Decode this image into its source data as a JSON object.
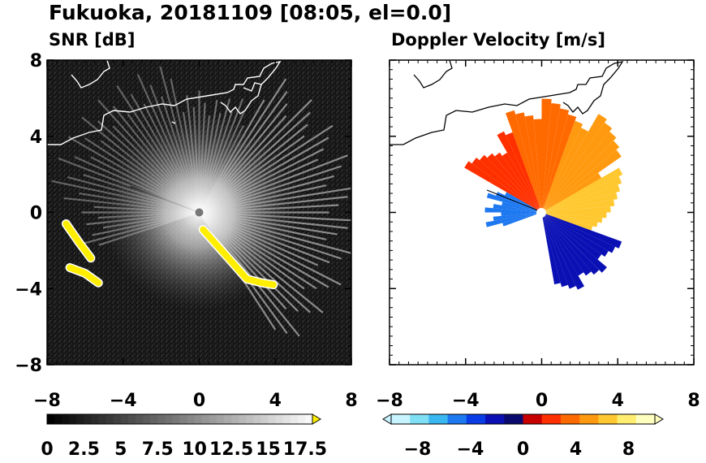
{
  "title": "Fukuoka, 20181109 [08:05, el=0.0]",
  "chart_data": [
    {
      "type": "heatmap",
      "title": "SNR [dB]",
      "xlim": [
        -8,
        8
      ],
      "ylim": [
        -8,
        8
      ],
      "x_ticks": [
        -8,
        -4,
        0,
        4,
        8
      ],
      "y_ticks": [
        8,
        4,
        0,
        -4,
        -8
      ],
      "x_tick_labels": [
        "−8",
        "−4",
        "0",
        "4",
        "8"
      ],
      "y_tick_labels": [
        "8",
        "4",
        "0",
        "−4",
        "−8"
      ],
      "background_color": "#1a1a1a",
      "highlight_color": "#ffee00",
      "colorbar": {
        "min": 0,
        "max": 18,
        "extend": "max",
        "tick_values": [
          0,
          2.5,
          5,
          7.5,
          10,
          12.5,
          15,
          17.5
        ],
        "tick_labels": [
          "0",
          "2.5",
          "5",
          "7.5",
          "10",
          "12.5",
          "15",
          "17.5"
        ],
        "low_color": "#000000",
        "high_color": "#f8f8f8",
        "extend_color": "#ffee00"
      },
      "radar_center": [
        0,
        0
      ],
      "strong_echo_areas": [
        {
          "x": [
            -7.0,
            -6.3,
            -5.7
          ],
          "y": [
            -0.6,
            -1.6,
            -2.4
          ]
        },
        {
          "x": [
            -6.8,
            -6.0,
            -5.3
          ],
          "y": [
            -2.9,
            -3.2,
            -3.7
          ]
        },
        {
          "x": [
            0.2,
            1.0,
            1.8,
            2.5,
            3.3,
            3.9
          ],
          "y": [
            -0.9,
            -1.8,
            -2.7,
            -3.5,
            -3.7,
            -3.8
          ]
        }
      ]
    },
    {
      "type": "heatmap",
      "title": "Doppler Velocity [m/s]",
      "xlim": [
        -8,
        8
      ],
      "ylim": [
        -8,
        8
      ],
      "x_ticks": [
        -8,
        -4,
        0,
        4,
        8
      ],
      "y_ticks": [
        8,
        4,
        0,
        -4,
        -8
      ],
      "x_tick_labels": [
        "−8",
        "−4",
        "0",
        "4",
        "8"
      ],
      "colorbar": {
        "min": -10,
        "max": 10,
        "extend": "both",
        "tick_values": [
          -8,
          -4,
          0,
          4,
          8
        ],
        "tick_labels": [
          "−8",
          "−4",
          "0",
          "4",
          "8"
        ],
        "colors": [
          "#c8f4ff",
          "#7fe0f5",
          "#3ab6f0",
          "#1e78f0",
          "#0a3ce6",
          "#0a10b4",
          "#0a0a6e",
          "#c80000",
          "#ff3000",
          "#ff6a00",
          "#ff9a10",
          "#ffc830",
          "#ffee70",
          "#ffffc0"
        ]
      },
      "radar_center": [
        0,
        0
      ],
      "receding_sector_color": "#ff9a10",
      "approaching_sector_color": "#0a3ce6"
    }
  ]
}
